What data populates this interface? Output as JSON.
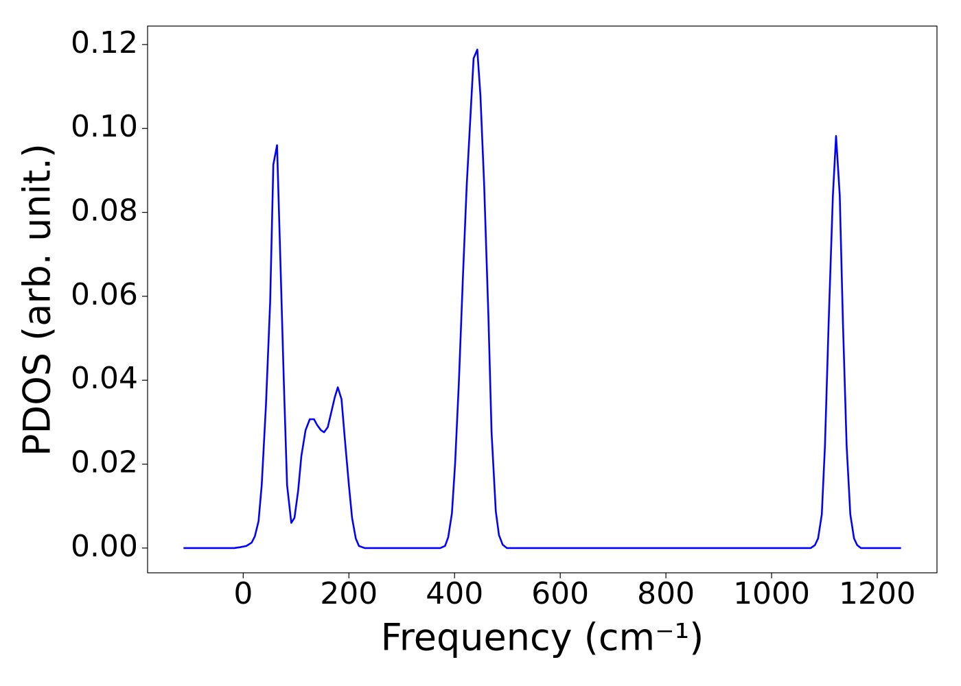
{
  "chart_data": {
    "type": "line",
    "xlabel": "Frequency (cm⁻¹)",
    "ylabel": "PDOS (arb. unit.)",
    "x": [
      -113,
      -17,
      -6,
      6,
      16,
      22,
      29,
      35,
      43,
      51,
      57,
      64,
      70,
      77,
      83,
      91,
      97,
      104,
      110,
      118,
      126,
      134,
      140,
      147,
      153,
      160,
      166,
      173,
      179,
      186,
      192,
      200,
      206,
      213,
      219,
      230,
      373,
      382,
      388,
      395,
      401,
      408,
      416,
      423,
      430,
      436,
      443,
      449,
      456,
      464,
      470,
      478,
      484,
      491,
      499,
      1074,
      1082,
      1088,
      1095,
      1101,
      1108,
      1116,
      1122,
      1129,
      1135,
      1142,
      1149,
      1156,
      1162,
      1169,
      1245
    ],
    "series": [
      {
        "name": "PDOS",
        "color": "#0000ff",
        "values": [
          0,
          0,
          0.0002,
          0.0005,
          0.0013,
          0.0028,
          0.0064,
          0.015,
          0.034,
          0.0587,
          0.0914,
          0.096,
          0.07,
          0.039,
          0.015,
          0.006,
          0.0072,
          0.0137,
          0.0219,
          0.0281,
          0.0307,
          0.0307,
          0.0293,
          0.0281,
          0.0276,
          0.0288,
          0.032,
          0.0358,
          0.0383,
          0.0355,
          0.0265,
          0.015,
          0.0072,
          0.0023,
          0.0005,
          0,
          0,
          0.0005,
          0.0026,
          0.0083,
          0.0201,
          0.0391,
          0.0652,
          0.0865,
          0.1028,
          0.1167,
          0.1188,
          0.1077,
          0.0865,
          0.0554,
          0.0276,
          0.0088,
          0.0031,
          0.0008,
          0,
          0,
          0.0007,
          0.0023,
          0.008,
          0.0244,
          0.0538,
          0.084,
          0.0982,
          0.084,
          0.0538,
          0.0244,
          0.008,
          0.0023,
          0.0007,
          0,
          0
        ]
      }
    ],
    "xlim": [
      -181,
      1313
    ],
    "ylim": [
      -0.0059,
      0.1244
    ],
    "xticks": [
      0,
      200,
      400,
      600,
      800,
      1000,
      1200
    ],
    "yticks": [
      {
        "value": 0,
        "label": "0.00"
      },
      {
        "value": 0.02,
        "label": "0.02"
      },
      {
        "value": 0.04,
        "label": "0.04"
      },
      {
        "value": 0.06,
        "label": "0.06"
      },
      {
        "value": 0.08,
        "label": "0.08"
      },
      {
        "value": 0.1,
        "label": "0.10"
      },
      {
        "value": 0.12,
        "label": "0.12"
      }
    ],
    "grid": false
  }
}
